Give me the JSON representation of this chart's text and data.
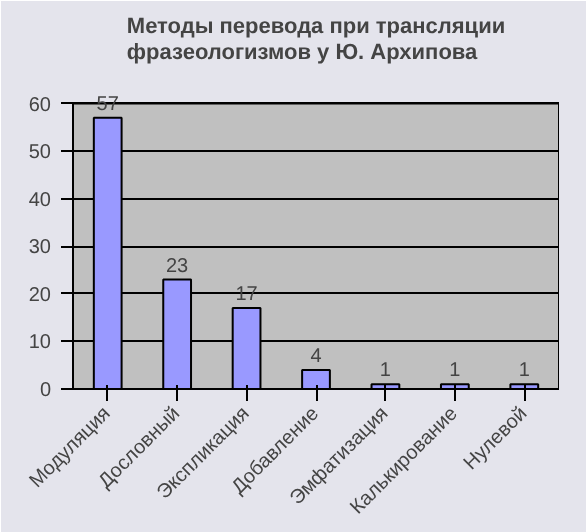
{
  "chart_data": {
    "type": "bar",
    "title": "Методы перевода при трансляции\nфразеологизмов у Ю. Архипова",
    "categories": [
      "Модуляция",
      "Дословный",
      "Экспликация",
      "Добавление",
      "Эмфатизация",
      "Калькирование",
      "Нулевой"
    ],
    "values": [
      57,
      23,
      17,
      4,
      1,
      1,
      1
    ],
    "color": "#9999ff",
    "ylim": [
      0,
      60
    ],
    "yticks": [
      0,
      10,
      20,
      30,
      40,
      50,
      60
    ],
    "grid": "y",
    "data_labels": true
  }
}
